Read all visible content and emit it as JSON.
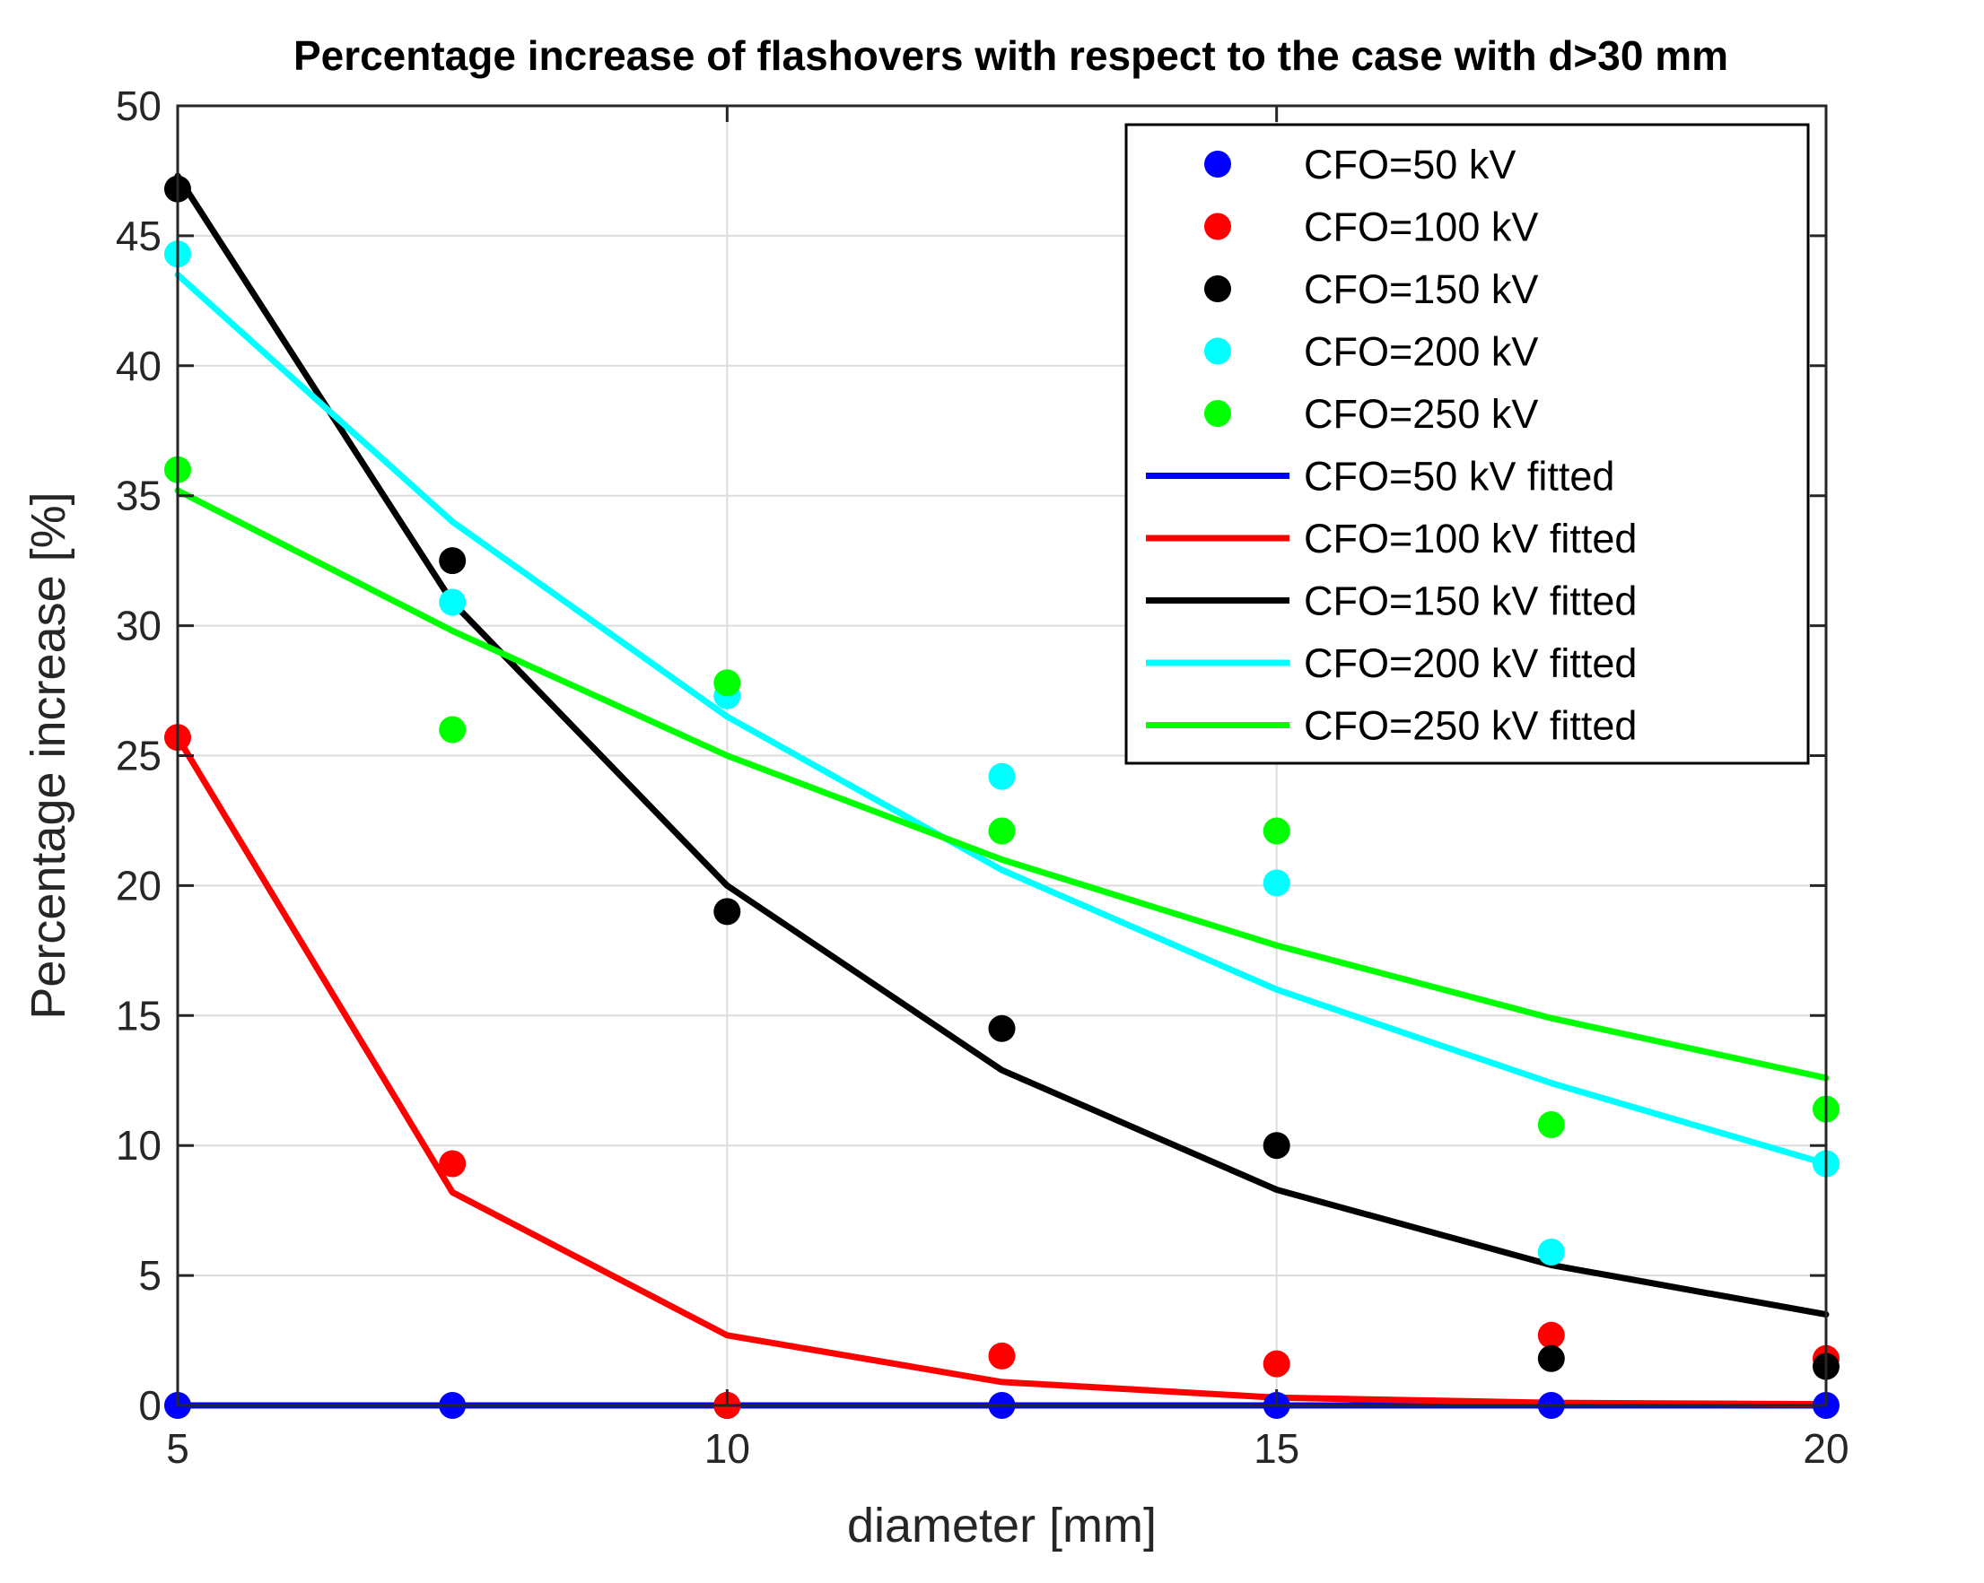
{
  "chart_data": {
    "type": "scatter",
    "title": "Percentage increase of flashovers with respect to the case with d>30 mm",
    "xlabel": "diameter [mm]",
    "ylabel": "Percentage increase [%]",
    "xlim": [
      5,
      20
    ],
    "ylim": [
      0,
      50
    ],
    "xticks": [
      "5",
      "10",
      "15",
      "20"
    ],
    "yticks": [
      "0",
      "5",
      "10",
      "15",
      "20",
      "25",
      "30",
      "35",
      "40",
      "45",
      "50"
    ],
    "grid": true,
    "legend_position": "top-right",
    "x": [
      5,
      7.5,
      10,
      12.5,
      15,
      17.5,
      20
    ],
    "series": [
      {
        "name": "CFO=50 kV",
        "kind": "points",
        "color": "#0000ff",
        "values": [
          0,
          0,
          0,
          0,
          0,
          0,
          0
        ]
      },
      {
        "name": "CFO=100 kV",
        "kind": "points",
        "color": "#ff0000",
        "values": [
          25.7,
          9.3,
          0,
          1.9,
          1.6,
          2.7,
          1.8
        ]
      },
      {
        "name": "CFO=150 kV",
        "kind": "points",
        "color": "#000000",
        "values": [
          46.8,
          32.5,
          19.0,
          14.5,
          10.0,
          1.8,
          1.5
        ]
      },
      {
        "name": "CFO=200 kV",
        "kind": "points",
        "color": "#00ffff",
        "values": [
          44.3,
          30.9,
          27.3,
          24.2,
          20.1,
          5.9,
          9.3
        ]
      },
      {
        "name": "CFO=250 kV",
        "kind": "points",
        "color": "#00ff00",
        "values": [
          36.0,
          26.0,
          27.8,
          22.1,
          22.1,
          10.8,
          11.4
        ]
      },
      {
        "name": "CFO=50 kV fitted",
        "kind": "line",
        "color": "#0000ff",
        "values": [
          0,
          0,
          0,
          0,
          0,
          0,
          0
        ]
      },
      {
        "name": "CFO=100 kV fitted",
        "kind": "line",
        "color": "#ff0000",
        "values": [
          25.7,
          8.2,
          2.7,
          0.9,
          0.3,
          0.1,
          0.05
        ]
      },
      {
        "name": "CFO=150 kV fitted",
        "kind": "line",
        "color": "#000000",
        "values": [
          47.3,
          30.9,
          20.0,
          12.9,
          8.3,
          5.4,
          3.5
        ]
      },
      {
        "name": "CFO=200 kV fitted",
        "kind": "line",
        "color": "#00ffff",
        "values": [
          43.5,
          34.0,
          26.5,
          20.6,
          16.0,
          12.4,
          9.3
        ]
      },
      {
        "name": "CFO=250 kV fitted",
        "kind": "line",
        "color": "#00ff00",
        "values": [
          35.2,
          29.8,
          25.0,
          21.0,
          17.7,
          14.9,
          12.6
        ]
      }
    ]
  }
}
